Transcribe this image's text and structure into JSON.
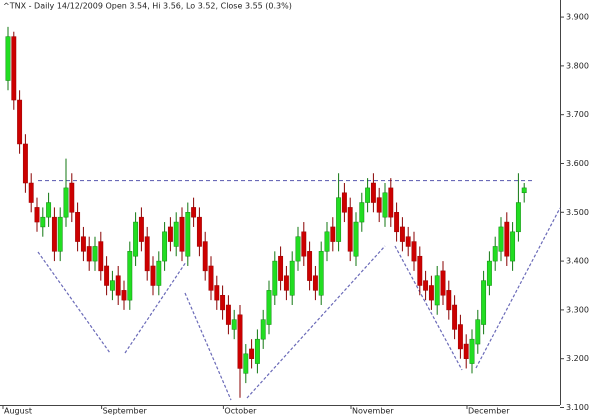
{
  "chart_data": {
    "type": "candlestick",
    "title": "^TNX - Daily 14/12/2009 Open 3.54, Hi 3.56, Lo 3.52, Close 3.55 (0.3%)",
    "categories": [
      "August",
      null,
      null,
      null,
      null,
      null,
      null,
      null,
      null,
      null,
      null,
      null,
      null,
      null,
      null,
      null,
      null,
      "September",
      null,
      null,
      null,
      null,
      null,
      null,
      null,
      null,
      null,
      null,
      null,
      null,
      null,
      null,
      null,
      null,
      null,
      null,
      null,
      null,
      "October",
      null,
      null,
      null,
      null,
      null,
      null,
      null,
      null,
      null,
      null,
      null,
      null,
      null,
      null,
      null,
      null,
      null,
      null,
      null,
      null,
      null,
      "November",
      null,
      null,
      null,
      null,
      null,
      null,
      null,
      null,
      null,
      null,
      null,
      null,
      null,
      null,
      null,
      null,
      null,
      null,
      null,
      "December",
      null,
      null,
      null,
      null,
      null,
      null,
      null,
      null,
      null
    ],
    "open": [
      3.77,
      3.86,
      3.73,
      3.64,
      3.56,
      3.51,
      3.47,
      3.49,
      3.49,
      3.42,
      3.49,
      3.56,
      3.5,
      3.45,
      3.43,
      3.4,
      3.44,
      3.39,
      3.34,
      3.37,
      3.34,
      3.32,
      3.41,
      3.49,
      3.45,
      3.39,
      3.35,
      3.4,
      3.47,
      3.43,
      3.49,
      3.41,
      3.51,
      3.49,
      3.44,
      3.39,
      3.35,
      3.33,
      3.31,
      3.26,
      3.29,
      3.17,
      3.22,
      3.19,
      3.24,
      3.27,
      3.33,
      3.41,
      3.37,
      3.33,
      3.4,
      3.46,
      3.42,
      3.37,
      3.33,
      3.42,
      3.47,
      3.44,
      3.54,
      3.51,
      3.41,
      3.48,
      3.52,
      3.56,
      3.53,
      3.49,
      3.55,
      3.5,
      3.47,
      3.45,
      3.44,
      3.41,
      3.36,
      3.35,
      3.31,
      3.38,
      3.34,
      3.31,
      3.27,
      3.23,
      3.19,
      3.23,
      3.27,
      3.35,
      3.4,
      3.42,
      3.48,
      3.4,
      3.46,
      3.54
    ],
    "high": [
      3.88,
      3.87,
      3.75,
      3.66,
      3.58,
      3.53,
      3.51,
      3.54,
      3.51,
      3.51,
      3.61,
      3.58,
      3.52,
      3.47,
      3.45,
      3.45,
      3.46,
      3.41,
      3.38,
      3.39,
      3.36,
      3.44,
      3.5,
      3.51,
      3.47,
      3.41,
      3.42,
      3.48,
      3.49,
      3.5,
      3.51,
      3.52,
      3.53,
      3.51,
      3.46,
      3.41,
      3.37,
      3.35,
      3.33,
      3.3,
      3.31,
      3.23,
      3.24,
      3.26,
      3.3,
      3.36,
      3.42,
      3.43,
      3.39,
      3.42,
      3.47,
      3.48,
      3.44,
      3.39,
      3.44,
      3.48,
      3.49,
      3.58,
      3.56,
      3.53,
      3.5,
      3.54,
      3.57,
      3.58,
      3.55,
      3.56,
      3.57,
      3.52,
      3.49,
      3.47,
      3.46,
      3.43,
      3.38,
      3.37,
      3.39,
      3.4,
      3.36,
      3.33,
      3.29,
      3.25,
      3.26,
      3.3,
      3.38,
      3.42,
      3.45,
      3.49,
      3.5,
      3.48,
      3.58,
      3.56
    ],
    "low": [
      3.75,
      3.71,
      3.62,
      3.54,
      3.5,
      3.46,
      3.45,
      3.47,
      3.4,
      3.4,
      3.47,
      3.48,
      3.42,
      3.4,
      3.38,
      3.38,
      3.36,
      3.33,
      3.32,
      3.31,
      3.3,
      3.3,
      3.39,
      3.42,
      3.36,
      3.33,
      3.33,
      3.38,
      3.42,
      3.41,
      3.4,
      3.39,
      3.47,
      3.41,
      3.36,
      3.32,
      3.3,
      3.28,
      3.25,
      3.24,
      3.12,
      3.15,
      3.18,
      3.17,
      3.22,
      3.25,
      3.31,
      3.34,
      3.32,
      3.31,
      3.38,
      3.39,
      3.34,
      3.32,
      3.31,
      3.4,
      3.42,
      3.42,
      3.48,
      3.4,
      3.39,
      3.46,
      3.5,
      3.5,
      3.48,
      3.47,
      3.47,
      3.44,
      3.42,
      3.41,
      3.38,
      3.33,
      3.32,
      3.3,
      3.29,
      3.31,
      3.28,
      3.24,
      3.2,
      3.18,
      3.17,
      3.21,
      3.25,
      3.33,
      3.38,
      3.4,
      3.39,
      3.38,
      3.44,
      3.52
    ],
    "close": [
      3.86,
      3.73,
      3.64,
      3.56,
      3.52,
      3.48,
      3.49,
      3.52,
      3.42,
      3.49,
      3.55,
      3.5,
      3.44,
      3.42,
      3.4,
      3.43,
      3.38,
      3.35,
      3.36,
      3.33,
      3.32,
      3.42,
      3.48,
      3.44,
      3.38,
      3.35,
      3.4,
      3.46,
      3.44,
      3.48,
      3.42,
      3.5,
      3.49,
      3.43,
      3.38,
      3.34,
      3.32,
      3.3,
      3.27,
      3.28,
      3.18,
      3.21,
      3.2,
      3.24,
      3.28,
      3.34,
      3.4,
      3.36,
      3.34,
      3.4,
      3.45,
      3.41,
      3.36,
      3.34,
      3.42,
      3.46,
      3.44,
      3.53,
      3.5,
      3.42,
      3.48,
      3.52,
      3.55,
      3.52,
      3.5,
      3.54,
      3.49,
      3.46,
      3.44,
      3.43,
      3.4,
      3.35,
      3.34,
      3.32,
      3.37,
      3.33,
      3.3,
      3.26,
      3.22,
      3.2,
      3.24,
      3.28,
      3.36,
      3.4,
      3.43,
      3.47,
      3.41,
      3.46,
      3.52,
      3.55
    ],
    "up_color": "#22dd22",
    "down_color": "#cc0000",
    "resistance": 3.565,
    "ylim": [
      3.1,
      3.935
    ],
    "yticks": [
      {
        "value": 3.1,
        "label": "3.100"
      },
      {
        "value": 3.2,
        "label": "3.200"
      },
      {
        "value": 3.3,
        "label": "3.300"
      },
      {
        "value": 3.4,
        "label": "3.400"
      },
      {
        "value": 3.5,
        "label": "3.500"
      },
      {
        "value": 3.6,
        "label": "3.600"
      },
      {
        "value": 3.7,
        "label": "3.700"
      },
      {
        "value": 3.8,
        "label": "3.800"
      },
      {
        "value": 3.9,
        "label": "3.900"
      }
    ],
    "grid": false
  }
}
